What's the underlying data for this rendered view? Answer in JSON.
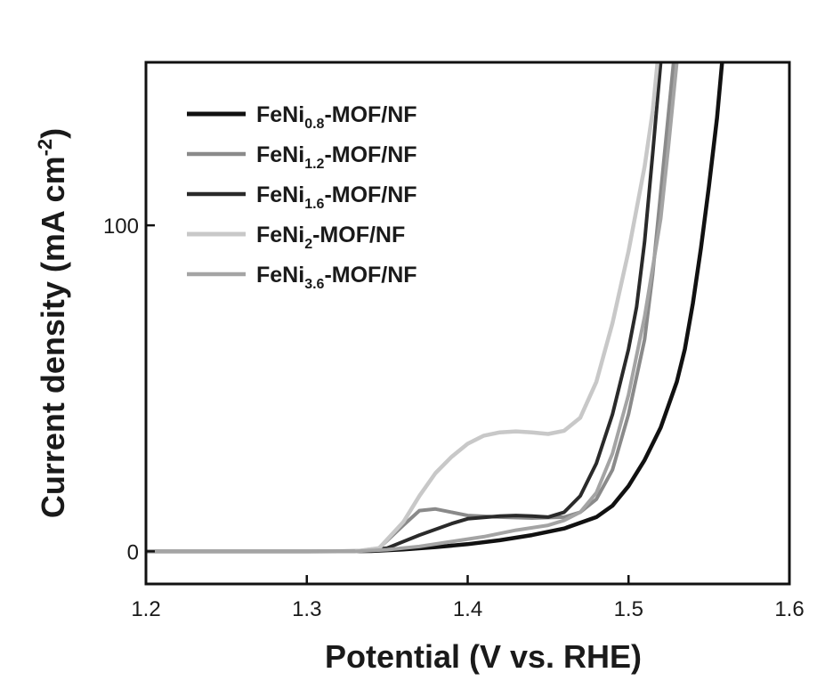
{
  "chart_data": {
    "type": "line",
    "title": "",
    "xlabel": "Potential (V vs. RHE)",
    "ylabel": "Current density (mA cm",
    "ylabel_sup": "-2",
    "ylabel_close": ")",
    "xlim": [
      1.2,
      1.6
    ],
    "ylim": [
      -10,
      150
    ],
    "x_ticks": [
      "1.2",
      "1.3",
      "1.4",
      "1.5",
      "1.6"
    ],
    "y_ticks": [
      "0",
      "100"
    ],
    "grid": false,
    "legend_position": "top-left",
    "series": [
      {
        "name": "FeNi0.8-MOF/NF",
        "label_base": "FeNi",
        "label_sub": "0.8",
        "label_tail": "-MOF/NF",
        "color": "#111111",
        "width": 4.5,
        "points": [
          [
            1.2,
            0
          ],
          [
            1.3,
            0
          ],
          [
            1.34,
            0.1
          ],
          [
            1.36,
            0.6
          ],
          [
            1.38,
            1.3
          ],
          [
            1.4,
            2.2
          ],
          [
            1.42,
            3.4
          ],
          [
            1.44,
            5.0
          ],
          [
            1.46,
            7.0
          ],
          [
            1.48,
            10.5
          ],
          [
            1.49,
            14
          ],
          [
            1.5,
            20
          ],
          [
            1.51,
            28
          ],
          [
            1.52,
            38
          ],
          [
            1.53,
            52
          ],
          [
            1.535,
            62
          ],
          [
            1.54,
            76
          ],
          [
            1.545,
            93
          ],
          [
            1.55,
            112
          ],
          [
            1.555,
            133
          ],
          [
            1.56,
            160
          ]
        ]
      },
      {
        "name": "FeNi1.2-MOF/NF",
        "label_base": "FeNi",
        "label_sub": "1.2",
        "label_tail": "-MOF/NF",
        "color": "#8a8a8a",
        "width": 4,
        "points": [
          [
            1.2,
            0
          ],
          [
            1.33,
            0
          ],
          [
            1.345,
            1
          ],
          [
            1.36,
            8
          ],
          [
            1.37,
            12.5
          ],
          [
            1.38,
            13
          ],
          [
            1.39,
            12
          ],
          [
            1.4,
            11
          ],
          [
            1.42,
            10.5
          ],
          [
            1.44,
            10.2
          ],
          [
            1.46,
            10.5
          ],
          [
            1.47,
            12
          ],
          [
            1.48,
            16
          ],
          [
            1.49,
            25
          ],
          [
            1.5,
            42
          ],
          [
            1.51,
            65
          ],
          [
            1.515,
            85
          ],
          [
            1.52,
            110
          ],
          [
            1.525,
            135
          ],
          [
            1.53,
            160
          ]
        ]
      },
      {
        "name": "FeNi1.6-MOF/NF",
        "label_base": "FeNi",
        "label_sub": "1.6",
        "label_tail": "-MOF/NF",
        "color": "#2a2a2a",
        "width": 4,
        "points": [
          [
            1.2,
            0
          ],
          [
            1.33,
            0
          ],
          [
            1.35,
            1
          ],
          [
            1.37,
            5
          ],
          [
            1.39,
            8.5
          ],
          [
            1.4,
            10
          ],
          [
            1.42,
            10.8
          ],
          [
            1.43,
            11
          ],
          [
            1.44,
            10.8
          ],
          [
            1.45,
            10.5
          ],
          [
            1.46,
            12
          ],
          [
            1.47,
            17
          ],
          [
            1.48,
            27
          ],
          [
            1.49,
            42
          ],
          [
            1.5,
            62
          ],
          [
            1.505,
            75
          ],
          [
            1.51,
            95
          ],
          [
            1.515,
            122
          ],
          [
            1.52,
            150
          ],
          [
            1.525,
            160
          ]
        ]
      },
      {
        "name": "FeNi2-MOF/NF",
        "label_base": "FeNi",
        "label_sub": "2",
        "label_tail": "-MOF/NF",
        "color": "#c8c8c8",
        "width": 4.5,
        "points": [
          [
            1.2,
            0
          ],
          [
            1.33,
            0
          ],
          [
            1.345,
            1
          ],
          [
            1.36,
            9
          ],
          [
            1.37,
            17
          ],
          [
            1.38,
            24
          ],
          [
            1.39,
            29
          ],
          [
            1.4,
            33
          ],
          [
            1.41,
            35.5
          ],
          [
            1.42,
            36.5
          ],
          [
            1.43,
            36.8
          ],
          [
            1.44,
            36.5
          ],
          [
            1.45,
            36
          ],
          [
            1.46,
            37
          ],
          [
            1.47,
            41
          ],
          [
            1.48,
            52
          ],
          [
            1.49,
            70
          ],
          [
            1.5,
            92
          ],
          [
            1.51,
            118
          ],
          [
            1.515,
            135
          ],
          [
            1.52,
            160
          ]
        ]
      },
      {
        "name": "FeNi3.6-MOF/NF",
        "label_base": "FeNi",
        "label_sub": "3.6",
        "label_tail": "-MOF/NF",
        "color": "#a4a4a4",
        "width": 4,
        "points": [
          [
            1.2,
            0
          ],
          [
            1.33,
            0
          ],
          [
            1.35,
            0.5
          ],
          [
            1.37,
            1.5
          ],
          [
            1.39,
            3
          ],
          [
            1.41,
            4.5
          ],
          [
            1.43,
            6.5
          ],
          [
            1.45,
            8
          ],
          [
            1.46,
            9.5
          ],
          [
            1.47,
            12
          ],
          [
            1.48,
            18
          ],
          [
            1.49,
            30
          ],
          [
            1.5,
            48
          ],
          [
            1.51,
            72
          ],
          [
            1.52,
            102
          ],
          [
            1.525,
            125
          ],
          [
            1.53,
            150
          ],
          [
            1.535,
            160
          ]
        ]
      }
    ]
  }
}
